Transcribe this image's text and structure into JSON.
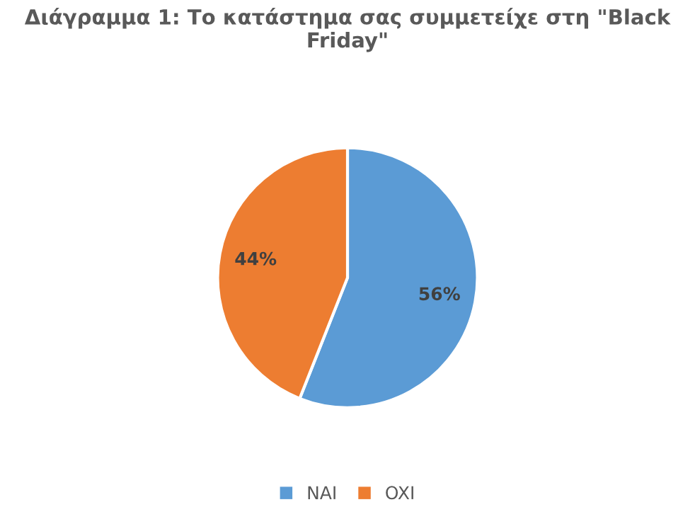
{
  "chart_data": {
    "type": "pie",
    "title": "Διάγραμμα 1: Το κατάστημα σας συμμετείχε στη \"Black Friday\"",
    "categories": [
      "NAI",
      "OXI"
    ],
    "values": [
      56,
      44
    ],
    "colors": [
      "#5b9bd5",
      "#ed7d31"
    ],
    "value_labels": [
      "56%",
      "44%"
    ],
    "legend": "bottom"
  }
}
